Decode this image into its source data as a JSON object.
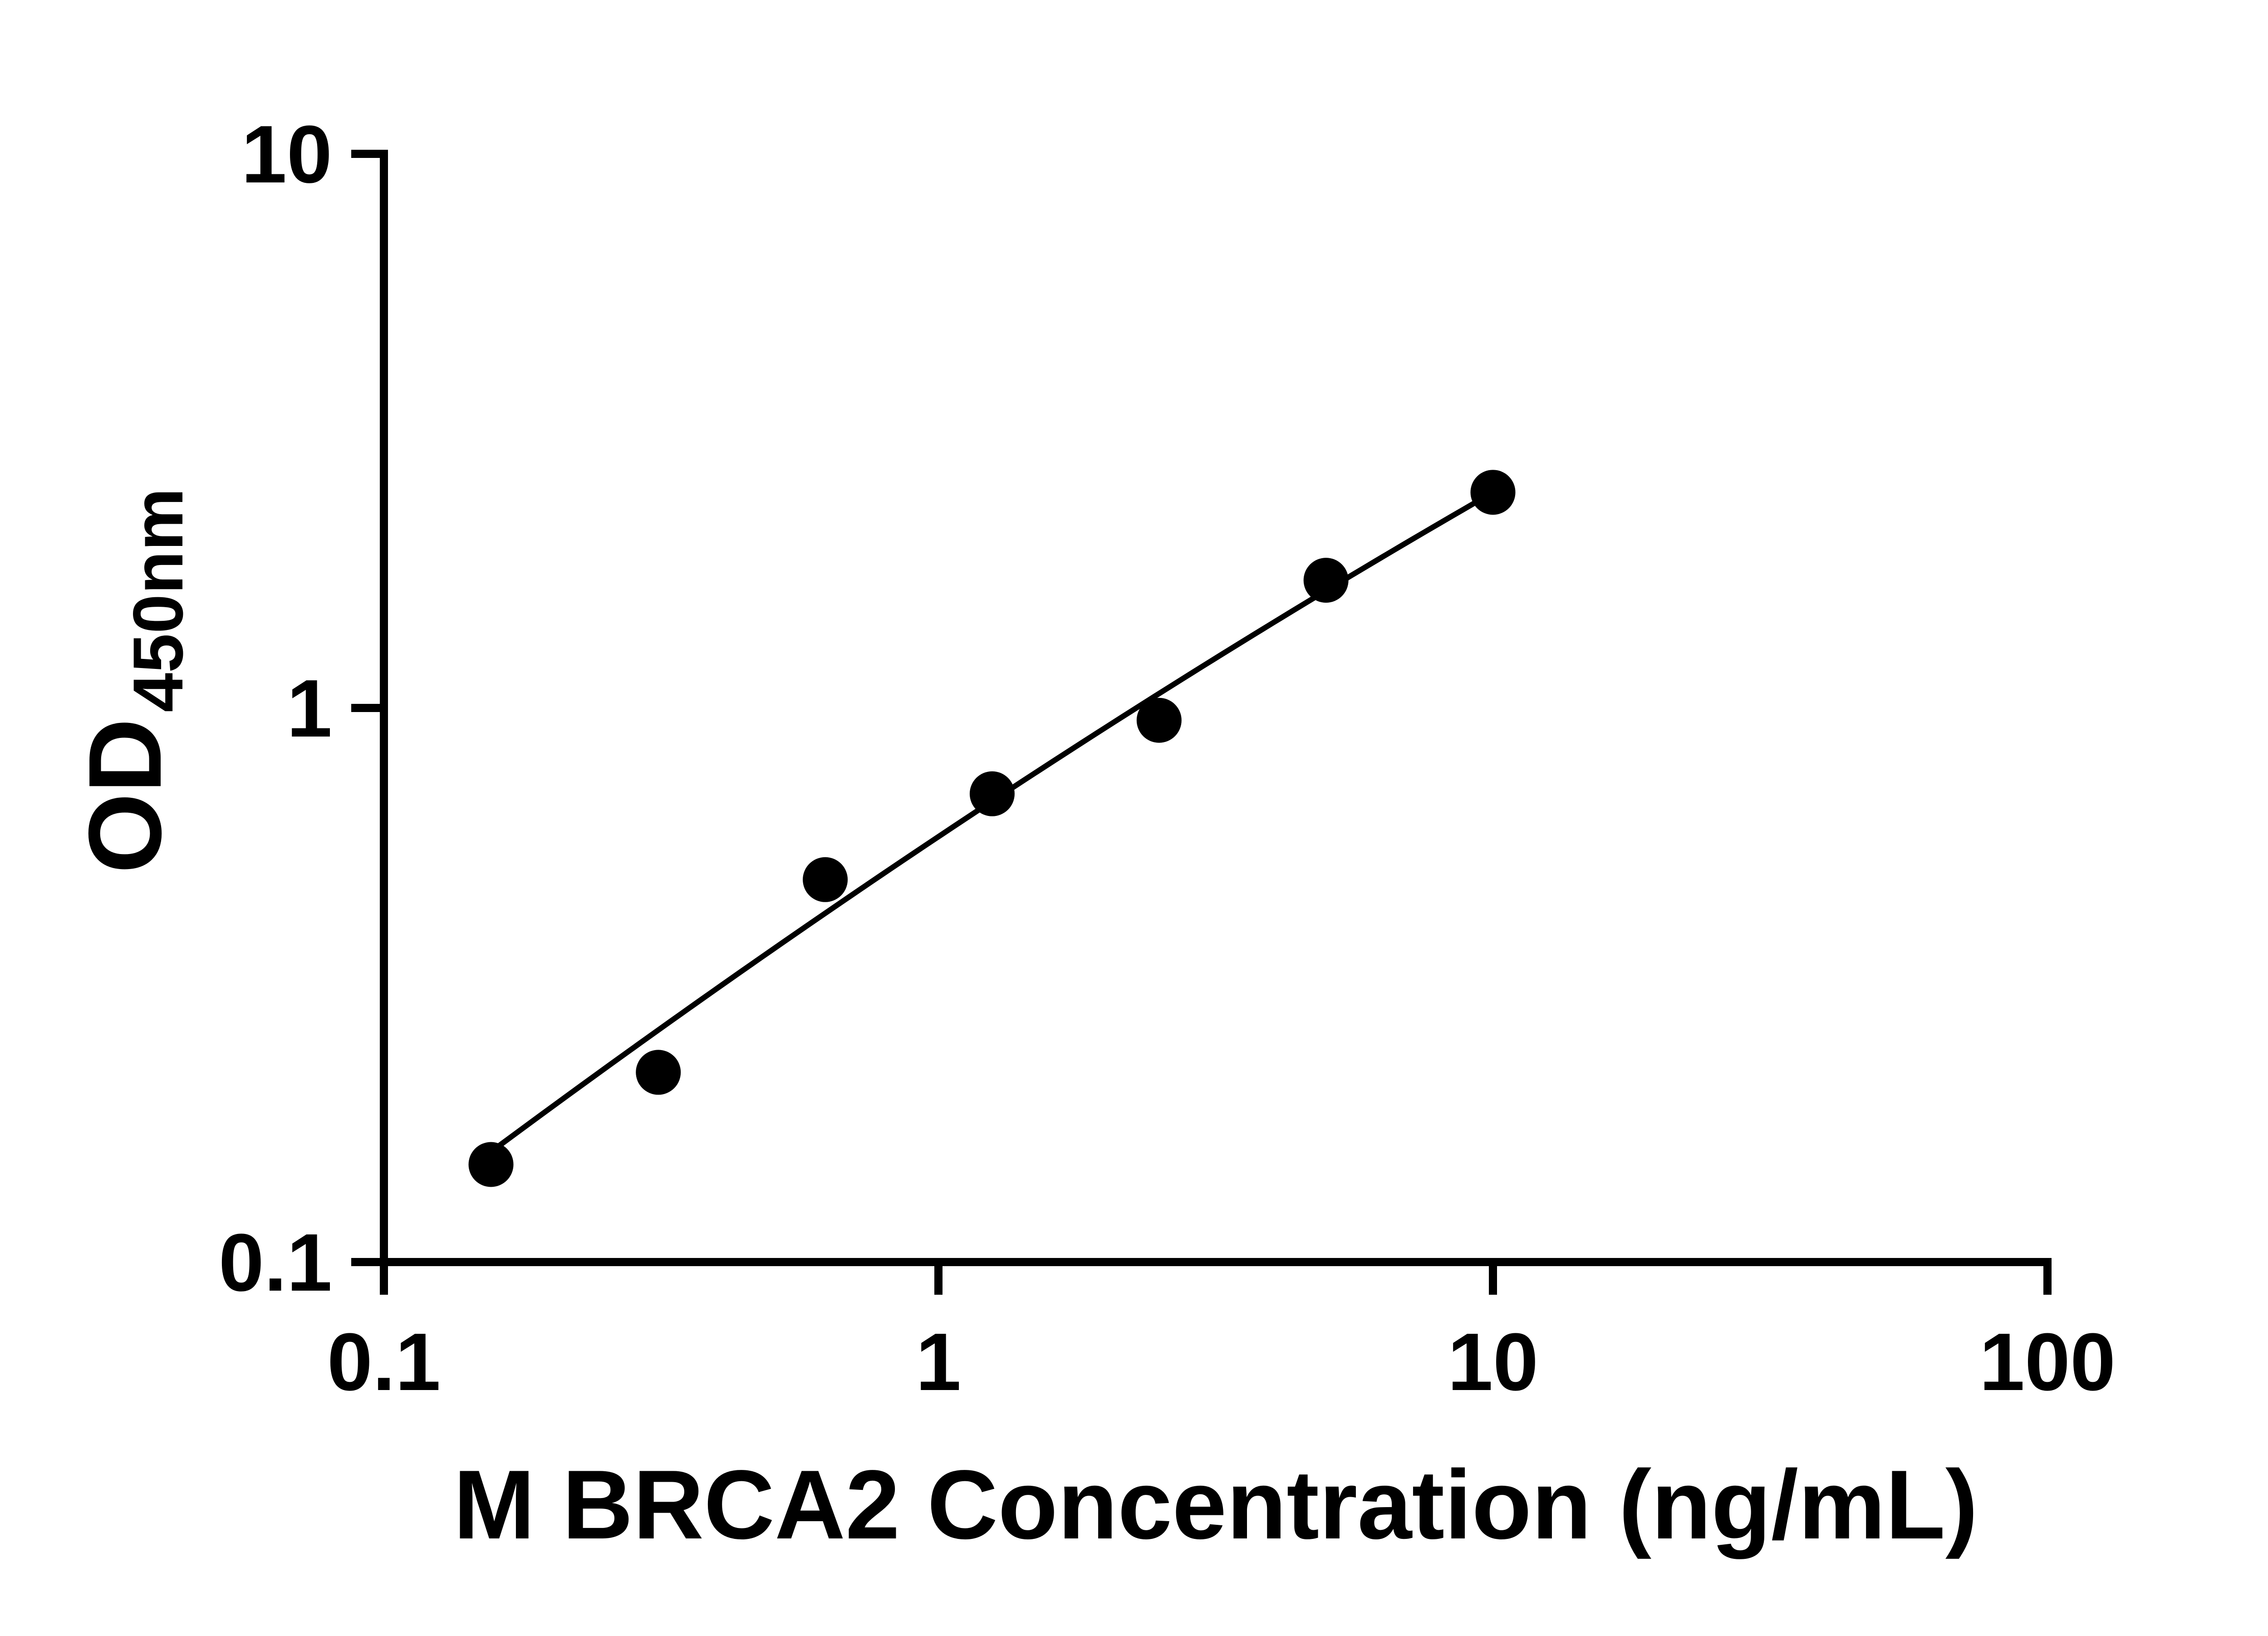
{
  "chart_data": {
    "type": "scatter",
    "title": "",
    "xlabel": "M BRCA2 Concentration (ng/mL)",
    "ylabel_main": "OD",
    "ylabel_sub": "450nm",
    "x_scale": "log",
    "y_scale": "log",
    "xlim": [
      0.1,
      100
    ],
    "ylim": [
      0.1,
      10
    ],
    "x_ticks": [
      {
        "value": 0.1,
        "label": "0.1"
      },
      {
        "value": 1,
        "label": "1"
      },
      {
        "value": 10,
        "label": "10"
      },
      {
        "value": 100,
        "label": "100"
      }
    ],
    "y_ticks": [
      {
        "value": 0.1,
        "label": "0.1"
      },
      {
        "value": 1,
        "label": "1"
      },
      {
        "value": 10,
        "label": "10"
      }
    ],
    "points": [
      {
        "x": 0.156,
        "y": 0.15
      },
      {
        "x": 0.3125,
        "y": 0.22
      },
      {
        "x": 0.625,
        "y": 0.49
      },
      {
        "x": 1.25,
        "y": 0.7
      },
      {
        "x": 2.5,
        "y": 0.95
      },
      {
        "x": 5,
        "y": 1.7
      },
      {
        "x": 10,
        "y": 2.45
      }
    ],
    "fit_curve": {
      "model": "log-quadratic",
      "a": -0.2323,
      "b": 0.6675,
      "c": -0.0462,
      "x_start": 0.156,
      "x_end": 10
    },
    "marker_color": "#000000",
    "line_color": "#000000",
    "axis_color": "#000000",
    "grid": false,
    "legend": false
  }
}
